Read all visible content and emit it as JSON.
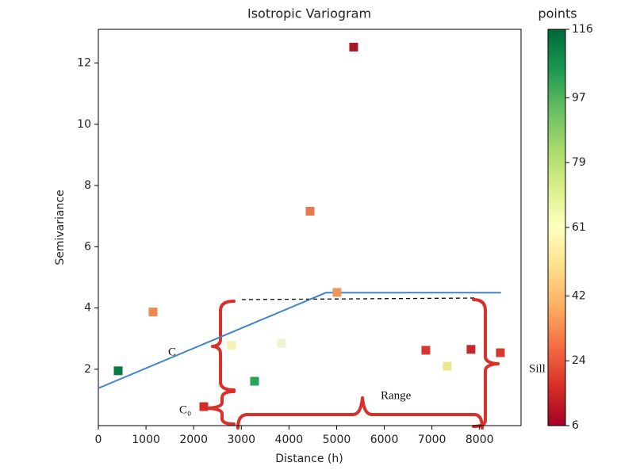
{
  "chart_data": {
    "type": "scatter",
    "title": "Isotropic Variogram",
    "x_label": "Distance (h)",
    "y_label": "Semivariance",
    "xlim": [
      0,
      8870
    ],
    "ylim": [
      0.16,
      13.1
    ],
    "xticks": [
      0,
      1000,
      2000,
      3000,
      4000,
      5000,
      6000,
      7000,
      8000
    ],
    "yticks": [
      2,
      4,
      6,
      8,
      10,
      12
    ],
    "points": {
      "x": [
        416,
        1148,
        2213,
        2795,
        3278,
        3844,
        4443,
        5008,
        5358,
        6872,
        7321,
        7820,
        8436
      ],
      "values": [
        1.95,
        3.87,
        0.78,
        2.78,
        1.61,
        2.85,
        7.16,
        4.51,
        12.52,
        2.62,
        2.1,
        2.65,
        2.54
      ],
      "colors": [
        "#0b7a42",
        "#ee8a4f",
        "#d22e27",
        "#f4f1b2",
        "#27a35a",
        "#f0f3cf",
        "#e8774a",
        "#ef9555",
        "#a7172b",
        "#d13a32",
        "#ece78e",
        "#c42a2c",
        "#cf3b2f"
      ]
    },
    "fit": {
      "x": [
        0,
        4775,
        8450
      ],
      "values": [
        1.38,
        4.5,
        4.5
      ],
      "color": "#3d85c6"
    },
    "colorbar": {
      "label": "points",
      "lim": [
        6,
        116
      ],
      "ticks": [
        6,
        24,
        42,
        61,
        79,
        97,
        116
      ],
      "colors": [
        "#a50026",
        "#d73027",
        "#f46d43",
        "#fdae61",
        "#fee08b",
        "#ffffbf",
        "#d9ef8b",
        "#a6d96a",
        "#66bd63",
        "#1a9850",
        "#006837"
      ]
    },
    "annotations": [
      "C",
      "C₀",
      "Range",
      "Sill"
    ]
  }
}
